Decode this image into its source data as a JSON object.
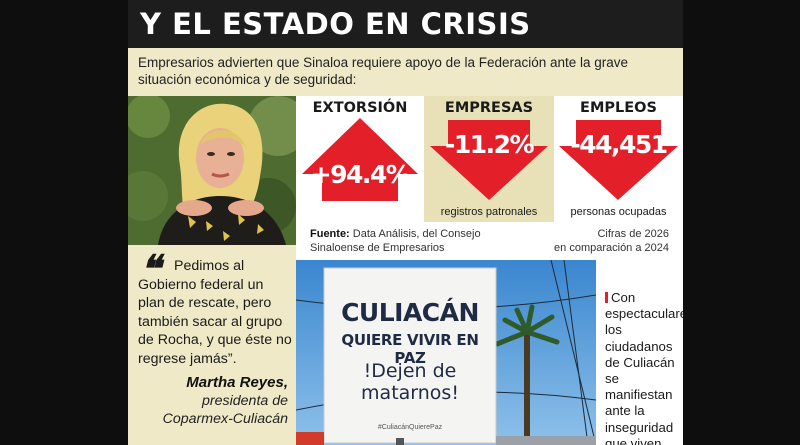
{
  "headline": "Y EL ESTADO EN CRISIS",
  "intro": "Empresarios advierten que Sinaloa requiere apoyo de la Federación ante la grave situación económica y de seguridad:",
  "stats": [
    {
      "title": "EXTORSIÓN",
      "value": "+94.4%",
      "caption": "",
      "direction": "up"
    },
    {
      "title": "EMPRESAS",
      "value": "-11.2%",
      "caption": "registros patronales",
      "direction": "down"
    },
    {
      "title": "EMPLEOS",
      "value": "-44,451",
      "caption": "personas ocupadas",
      "direction": "down"
    }
  ],
  "source": {
    "label": "Fuente:",
    "text": "Data Análisis, del Consejo Sinaloense de Empresarios",
    "note_line1": "Cifras de 2026",
    "note_line2": "en comparación a 2024"
  },
  "quote": {
    "text": "Pedimos al Gobierno federal un plan de rescate, pero también sacar al grupo de Rocha, y que éste no regrese jamás”.",
    "author": "Martha Reyes,",
    "role": "presidenta de Coparmex-Culiacán"
  },
  "banner": {
    "line1": "CULIACÁN",
    "line2": "QUIERE VIVIR EN PAZ",
    "line3": "!Dejen de",
    "line4": "matarnos!",
    "hashtag": "#CuliacánQuierePaz"
  },
  "caption": "Con espectaculares, los ciudadanos de Culiacán se manifiestan ante la inseguridad que viven.",
  "colors": {
    "accent_red": "#e3202a",
    "cream": "#efe9c7",
    "cream_alt": "#e8e1b8",
    "header_dark": "#1d1d1d"
  }
}
